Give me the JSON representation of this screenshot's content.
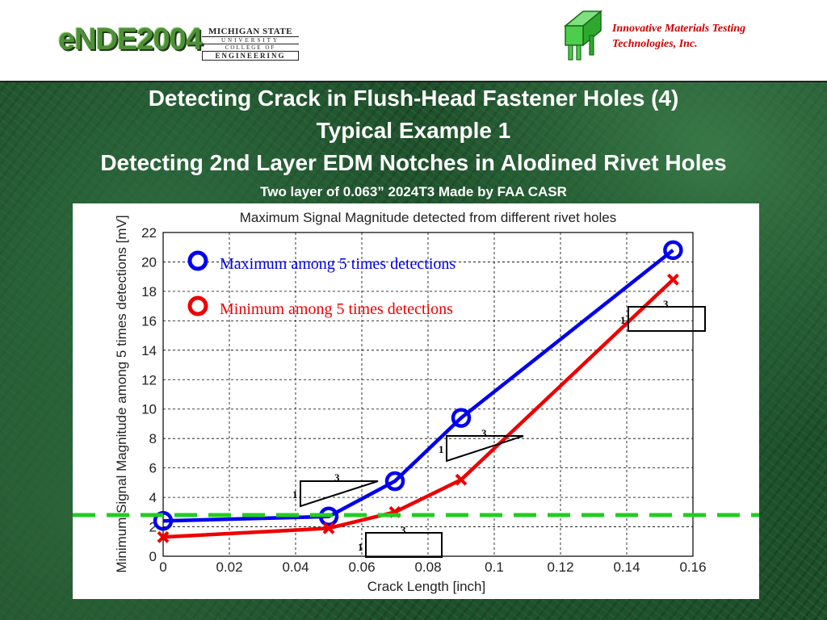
{
  "header": {
    "logo_text": "eNDE2004",
    "msu": {
      "line1": "MICHIGAN STATE",
      "line2": "UNIVERSITY",
      "line3": "COLLEGE OF",
      "line4": "ENGINEERING"
    },
    "company_line1": "Innovative Materials Testing",
    "company_line2": "Technologies, Inc.",
    "company_logo_icon": "imtt-logo-icon"
  },
  "slide": {
    "title1": "Detecting Crack in Flush-Head Fastener Holes (4)",
    "title2": "Typical Example 1",
    "title3": "Detecting 2nd Layer EDM Notches in Alodined Rivet Holes",
    "subtitle": "Two layer of 0.063” 2024T3 Made by FAA CASR"
  },
  "chart_data": {
    "type": "line",
    "title": "Maximum Signal Magnitude detected from different rivet holes",
    "xlabel": "Crack Length [inch]",
    "ylabel": "Minimum Signal Magnitude among 5 times detections [mV]",
    "xlim": [
      0,
      0.16
    ],
    "ylim": [
      0,
      22
    ],
    "xticks": [
      "0",
      "0.02",
      "0.04",
      "0.06",
      "0.08",
      "0.1",
      "0.12",
      "0.14",
      "0.16"
    ],
    "yticks": [
      "0",
      "2",
      "4",
      "6",
      "8",
      "10",
      "12",
      "14",
      "16",
      "18",
      "20",
      "22"
    ],
    "grid": true,
    "series": [
      {
        "name": "Maximum among 5 times detections",
        "color": "#0000ee",
        "marker": "circle",
        "x": [
          0,
          0.05,
          0.07,
          0.09,
          0.154
        ],
        "y": [
          2.4,
          2.7,
          5.1,
          9.4,
          20.8
        ]
      },
      {
        "name": "Minimum among 5 times detections",
        "color": "#ee0000",
        "marker": "x",
        "x": [
          0,
          0.05,
          0.07,
          0.09,
          0.154
        ],
        "y": [
          1.3,
          1.9,
          3.0,
          5.2,
          18.8
        ]
      }
    ],
    "threshold": {
      "y": 2.8,
      "color": "#22cc22",
      "style": "dashed"
    },
    "slope_annotations": [
      {
        "run": "3",
        "rise": "1"
      },
      {
        "run": "3",
        "rise": "1"
      },
      {
        "run": "3",
        "rise": "1"
      },
      {
        "run": "3",
        "rise": "1"
      }
    ]
  }
}
